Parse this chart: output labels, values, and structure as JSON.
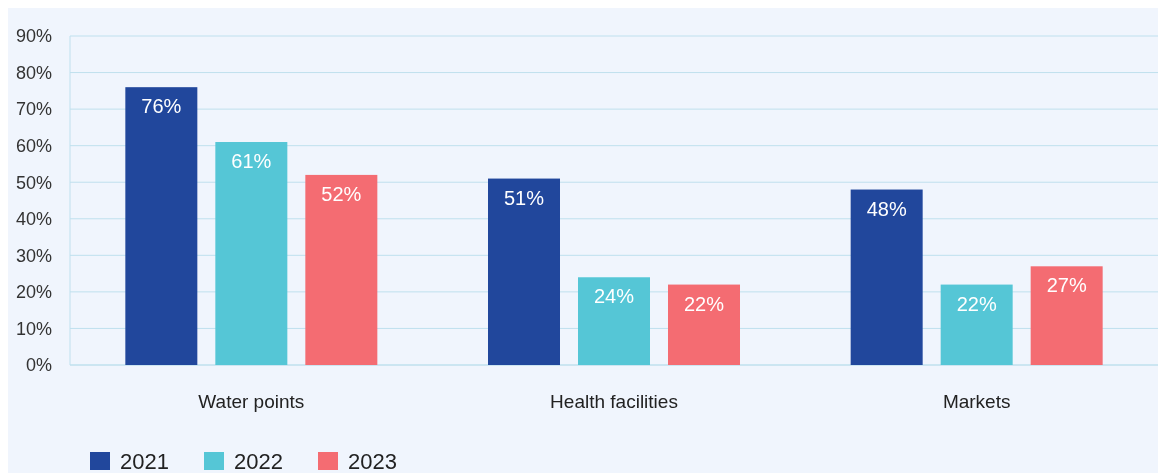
{
  "chart_data": {
    "type": "bar",
    "categories": [
      "Water points",
      "Health facilities",
      "Markets"
    ],
    "series": [
      {
        "name": "2021",
        "color": "#21479c",
        "values": [
          76,
          51,
          48
        ],
        "value_labels": [
          "76%",
          "51%",
          "48%"
        ]
      },
      {
        "name": "2022",
        "color": "#55c6d6",
        "values": [
          61,
          24,
          22
        ],
        "value_labels": [
          "61%",
          "24%",
          "22%"
        ]
      },
      {
        "name": "2023",
        "color": "#f46c72",
        "values": [
          52,
          22,
          27
        ],
        "value_labels": [
          "52%",
          "22%",
          "27%"
        ]
      }
    ],
    "ylim": [
      0,
      90
    ],
    "yticks": [
      {
        "value": 0,
        "label": "0%"
      },
      {
        "value": 10,
        "label": "10%"
      },
      {
        "value": 20,
        "label": "20%"
      },
      {
        "value": 30,
        "label": "30%"
      },
      {
        "value": 40,
        "label": "40%"
      },
      {
        "value": 50,
        "label": "50%"
      },
      {
        "value": 60,
        "label": "60%"
      },
      {
        "value": 70,
        "label": "70%"
      },
      {
        "value": 80,
        "label": "80%"
      },
      {
        "value": 90,
        "label": "90%"
      }
    ],
    "grid": "y",
    "legend": "bottom left"
  }
}
